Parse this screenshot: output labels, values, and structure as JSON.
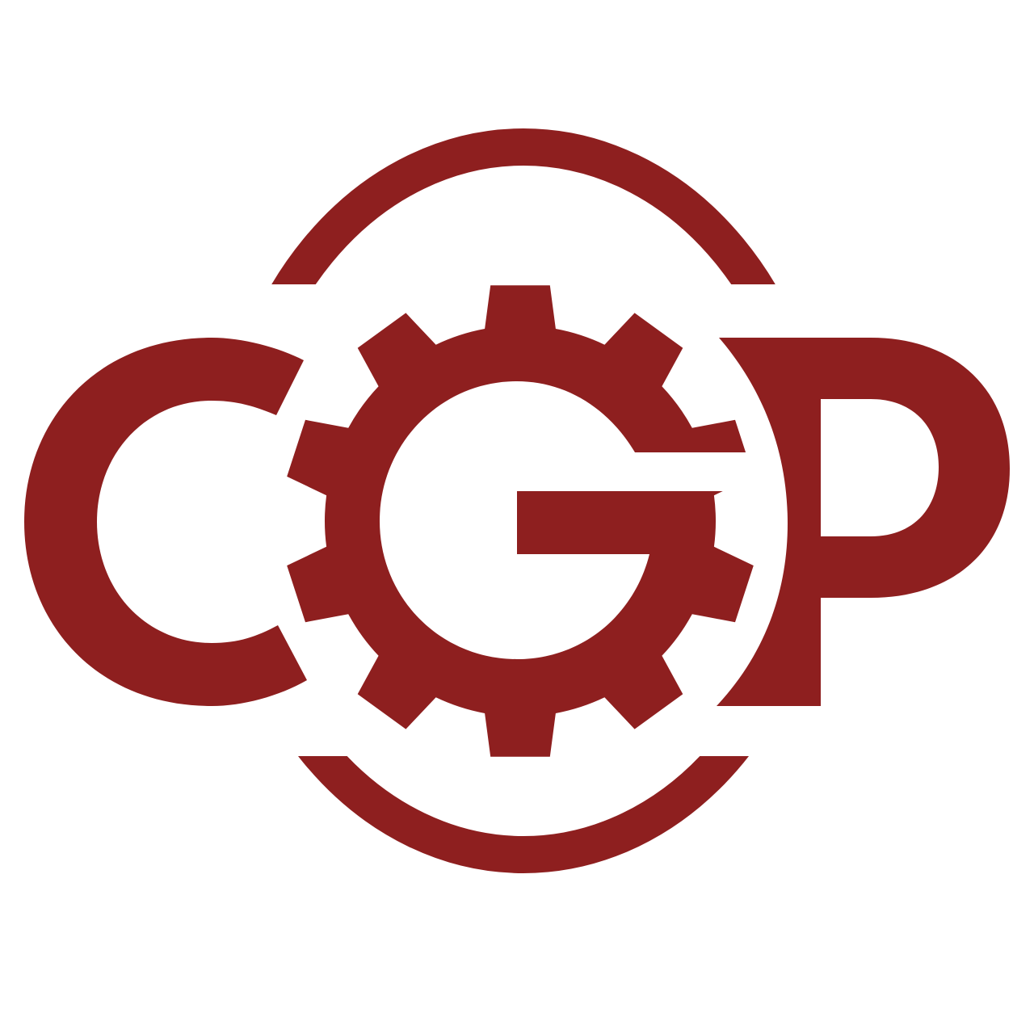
{
  "logo": {
    "text": "CGP",
    "letters": [
      "C",
      "G",
      "P"
    ],
    "colors": {
      "brand": "#8e1f1f",
      "background": "#ffffff"
    },
    "icons": [
      "gear-icon",
      "orbit-ring-icon"
    ]
  }
}
